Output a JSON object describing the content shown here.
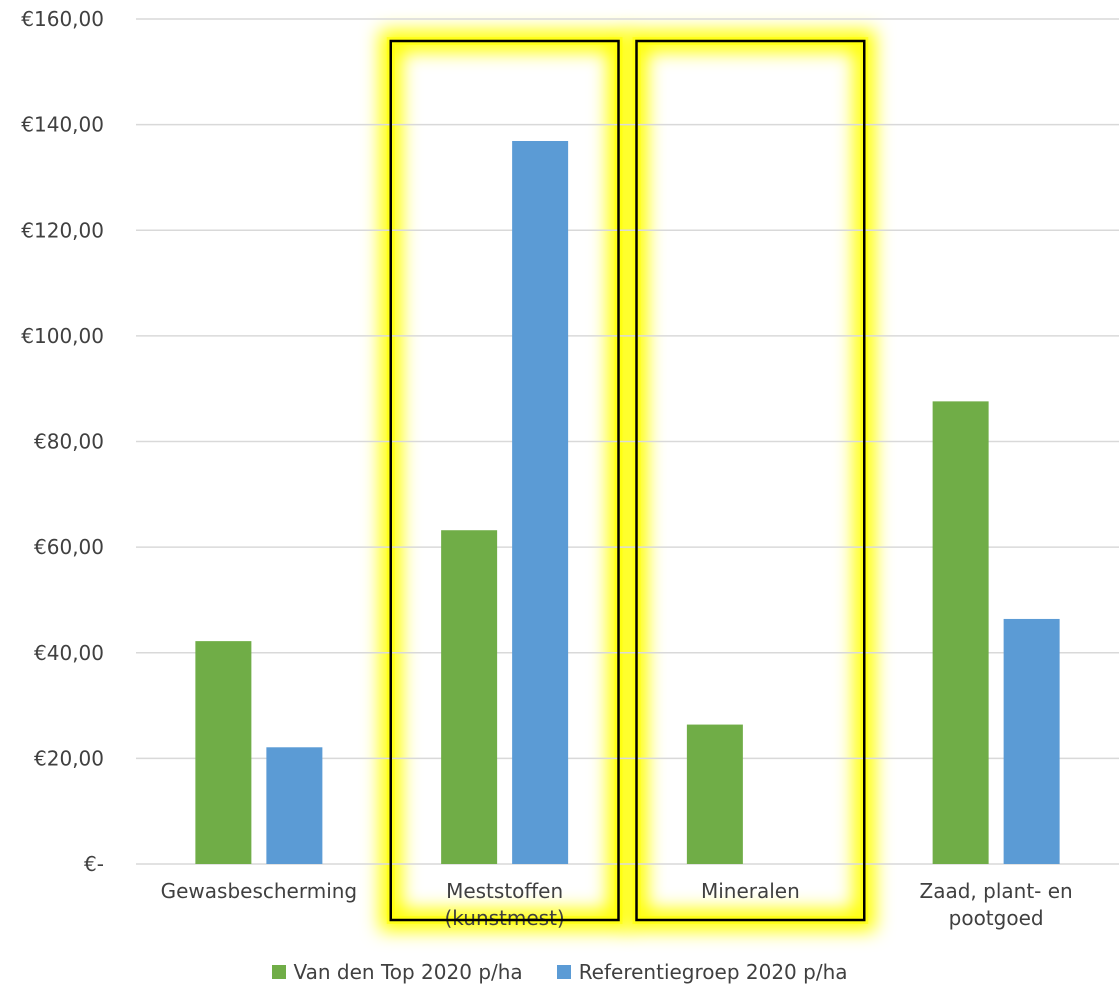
{
  "chart_data": {
    "type": "bar",
    "title": "",
    "xlabel": "",
    "ylabel": "",
    "ylim": [
      0,
      160
    ],
    "yticks": [
      0,
      20,
      40,
      60,
      80,
      100,
      120,
      140,
      160
    ],
    "ytick_labels": [
      "€-",
      "€20,00",
      "€40,00",
      "€60,00",
      "€80,00",
      "€100,00",
      "€120,00",
      "€140,00",
      "€160,00"
    ],
    "categories": [
      [
        "Gewasbescherming"
      ],
      [
        "Meststoffen",
        "(kunstmest)"
      ],
      [
        "Mineralen"
      ],
      [
        "Zaad, plant- en",
        "pootgoed"
      ]
    ],
    "series": [
      {
        "name": "Van den Top 2020 p/ha",
        "color": "#70ad47",
        "values": [
          42.2,
          63.2,
          26.4,
          87.6
        ]
      },
      {
        "name": "Referentiegroep 2020 p/ha",
        "color": "#5b9bd5",
        "values": [
          22.1,
          136.9,
          0,
          46.4
        ]
      }
    ],
    "grid": true,
    "legend_position": "bottom",
    "highlighted_categories": [
      1,
      2
    ],
    "highlight_colors": {
      "glow": "#ffff00",
      "border": "#000000"
    }
  }
}
